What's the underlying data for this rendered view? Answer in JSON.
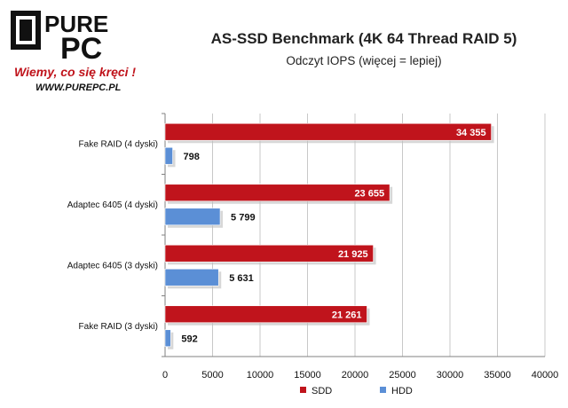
{
  "logo": {
    "brand_top": "PURE",
    "brand_bottom": "PC",
    "slogan": "Wiemy, co się kręci !",
    "url": "WWW.PUREPC.PL"
  },
  "colors": {
    "ssd": "#c0141c",
    "hdd": "#5b8fd6",
    "grid": "#c8c8c8",
    "axis": "#808080"
  },
  "chart_data": {
    "type": "bar",
    "orientation": "horizontal",
    "title": "AS-SSD Benchmark (4K 64 Thread RAID 5)",
    "subtitle": "Odczyt IOPS (więcej = lepiej)",
    "categories": [
      "Fake RAID (4 dyski)",
      "Adaptec 6405 (4 dyski)",
      "Adaptec 6405 (3 dyski)",
      "Fake RAID (3 dyski)"
    ],
    "series": [
      {
        "name": "SDD",
        "values": [
          34355,
          23655,
          21925,
          21261
        ],
        "labels": [
          "34 355",
          "23 655",
          "21 925",
          "21 261"
        ]
      },
      {
        "name": "HDD",
        "values": [
          798,
          5799,
          5631,
          592
        ],
        "labels": [
          "798",
          "5 799",
          "5 631",
          "592"
        ]
      }
    ],
    "xlim": [
      0,
      40000
    ],
    "xticks": [
      0,
      5000,
      10000,
      15000,
      20000,
      25000,
      30000,
      35000,
      40000
    ],
    "grid": true,
    "legend_position": "bottom"
  }
}
